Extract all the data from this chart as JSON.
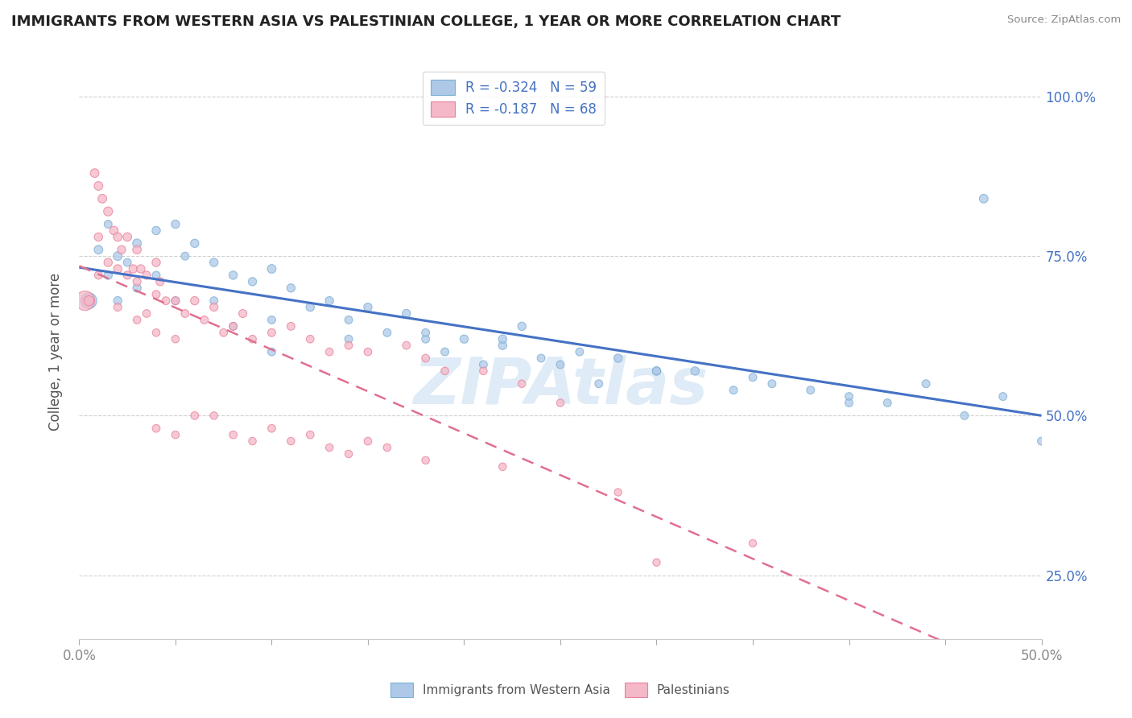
{
  "title": "IMMIGRANTS FROM WESTERN ASIA VS PALESTINIAN COLLEGE, 1 YEAR OR MORE CORRELATION CHART",
  "source": "Source: ZipAtlas.com",
  "ylabel": "College, 1 year or more",
  "xlim": [
    0.0,
    0.5
  ],
  "ylim": [
    0.15,
    1.05
  ],
  "series1_name": "Immigrants from Western Asia",
  "series1_facecolor": "#aec9e8",
  "series1_edgecolor": "#7aafd4",
  "series1_line_color": "#4472c4",
  "series1_R": -0.324,
  "series1_N": 59,
  "series2_name": "Palestinians",
  "series2_facecolor": "#f5b8c8",
  "series2_edgecolor": "#e8809a",
  "series2_line_color": "#e07090",
  "series2_R": -0.187,
  "series2_N": 68,
  "background_color": "#ffffff",
  "grid_color": "#cccccc",
  "legend_text_color": "#4472c4",
  "tick_color": "#888888",
  "series1_x": [
    0.005,
    0.01,
    0.015,
    0.015,
    0.02,
    0.02,
    0.025,
    0.03,
    0.03,
    0.04,
    0.04,
    0.05,
    0.05,
    0.055,
    0.06,
    0.07,
    0.07,
    0.08,
    0.08,
    0.09,
    0.1,
    0.1,
    0.11,
    0.12,
    0.13,
    0.14,
    0.15,
    0.16,
    0.17,
    0.18,
    0.19,
    0.2,
    0.21,
    0.22,
    0.23,
    0.24,
    0.25,
    0.27,
    0.28,
    0.3,
    0.32,
    0.34,
    0.36,
    0.38,
    0.4,
    0.42,
    0.44,
    0.46,
    0.48,
    0.5,
    0.22,
    0.26,
    0.3,
    0.35,
    0.4,
    0.18,
    0.14,
    0.1,
    0.47
  ],
  "series1_y": [
    0.68,
    0.76,
    0.72,
    0.8,
    0.75,
    0.68,
    0.74,
    0.77,
    0.7,
    0.79,
    0.72,
    0.8,
    0.68,
    0.75,
    0.77,
    0.74,
    0.68,
    0.72,
    0.64,
    0.71,
    0.73,
    0.65,
    0.7,
    0.67,
    0.68,
    0.65,
    0.67,
    0.63,
    0.66,
    0.62,
    0.6,
    0.62,
    0.58,
    0.61,
    0.64,
    0.59,
    0.58,
    0.55,
    0.59,
    0.57,
    0.57,
    0.54,
    0.55,
    0.54,
    0.53,
    0.52,
    0.55,
    0.5,
    0.53,
    0.46,
    0.62,
    0.6,
    0.57,
    0.56,
    0.52,
    0.63,
    0.62,
    0.6,
    0.84
  ],
  "series1_sizes": [
    200,
    60,
    55,
    50,
    60,
    55,
    50,
    60,
    55,
    55,
    50,
    55,
    50,
    50,
    55,
    55,
    50,
    55,
    50,
    55,
    60,
    50,
    55,
    55,
    55,
    50,
    55,
    50,
    55,
    50,
    50,
    55,
    50,
    55,
    55,
    50,
    50,
    50,
    55,
    55,
    55,
    50,
    50,
    50,
    50,
    50,
    50,
    50,
    50,
    50,
    55,
    50,
    55,
    50,
    50,
    50,
    50,
    50,
    60
  ],
  "series2_x": [
    0.003,
    0.005,
    0.008,
    0.01,
    0.01,
    0.01,
    0.012,
    0.015,
    0.015,
    0.018,
    0.02,
    0.02,
    0.02,
    0.022,
    0.025,
    0.025,
    0.028,
    0.03,
    0.03,
    0.03,
    0.032,
    0.035,
    0.035,
    0.04,
    0.04,
    0.04,
    0.042,
    0.045,
    0.05,
    0.05,
    0.055,
    0.06,
    0.065,
    0.07,
    0.075,
    0.08,
    0.085,
    0.09,
    0.1,
    0.11,
    0.12,
    0.13,
    0.14,
    0.15,
    0.17,
    0.18,
    0.19,
    0.21,
    0.23,
    0.25,
    0.04,
    0.05,
    0.06,
    0.07,
    0.08,
    0.09,
    0.1,
    0.11,
    0.12,
    0.13,
    0.14,
    0.15,
    0.16,
    0.18,
    0.22,
    0.28,
    0.3,
    0.35
  ],
  "series2_y": [
    0.68,
    0.68,
    0.88,
    0.86,
    0.78,
    0.72,
    0.84,
    0.82,
    0.74,
    0.79,
    0.78,
    0.73,
    0.67,
    0.76,
    0.78,
    0.72,
    0.73,
    0.76,
    0.71,
    0.65,
    0.73,
    0.72,
    0.66,
    0.74,
    0.69,
    0.63,
    0.71,
    0.68,
    0.68,
    0.62,
    0.66,
    0.68,
    0.65,
    0.67,
    0.63,
    0.64,
    0.66,
    0.62,
    0.63,
    0.64,
    0.62,
    0.6,
    0.61,
    0.6,
    0.61,
    0.59,
    0.57,
    0.57,
    0.55,
    0.52,
    0.48,
    0.47,
    0.5,
    0.5,
    0.47,
    0.46,
    0.48,
    0.46,
    0.47,
    0.45,
    0.44,
    0.46,
    0.45,
    0.43,
    0.42,
    0.38,
    0.27,
    0.3
  ],
  "series2_sizes": [
    300,
    80,
    60,
    60,
    55,
    50,
    60,
    65,
    55,
    58,
    60,
    55,
    50,
    55,
    58,
    52,
    55,
    58,
    52,
    48,
    55,
    52,
    48,
    55,
    50,
    46,
    52,
    50,
    52,
    46,
    50,
    55,
    50,
    52,
    48,
    50,
    52,
    48,
    50,
    50,
    48,
    48,
    48,
    48,
    48,
    48,
    46,
    46,
    46,
    46,
    48,
    46,
    48,
    46,
    48,
    46,
    48,
    46,
    48,
    46,
    46,
    48,
    46,
    46,
    46,
    44,
    44,
    44
  ]
}
